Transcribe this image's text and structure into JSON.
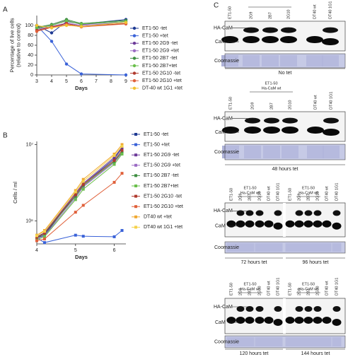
{
  "chart_data": [
    {
      "type": "line",
      "panel_label": "A",
      "ylabel": [
        "Percentage of live cells",
        "(relative to control)"
      ],
      "xlabel": "Days",
      "x": [
        3,
        4,
        5,
        6,
        9
      ],
      "xlim": [
        3,
        9
      ],
      "xticks": [
        3,
        4,
        5,
        6,
        7,
        8,
        9
      ],
      "ylim": [
        0,
        120
      ],
      "yticks": [
        0,
        20,
        40,
        60,
        80,
        100
      ],
      "marker": "circle",
      "series": [
        {
          "name": "ET1-50 -tet",
          "color": "#1f3a93",
          "values": [
            100,
            85,
            108,
            103,
            112
          ]
        },
        {
          "name": "ET1-50 +tet",
          "color": "#3a62d8",
          "values": [
            100,
            68,
            22,
            2,
            0
          ]
        },
        {
          "name": "ET1-50 2G9 -tet",
          "color": "#6c3a99",
          "values": [
            95,
            100,
            110,
            102,
            108
          ]
        },
        {
          "name": "ET1-50 2G9 +tet",
          "color": "#9b6bc4",
          "values": [
            92,
            98,
            105,
            100,
            106
          ]
        },
        {
          "name": "ET1-50 2B7 -tet",
          "color": "#3e8e41",
          "values": [
            96,
            102,
            112,
            104,
            110
          ]
        },
        {
          "name": "ET1-50 2B7+tet",
          "color": "#6abf4b",
          "values": [
            94,
            100,
            109,
            103,
            108
          ]
        },
        {
          "name": "ET1-50 2G10 -tet",
          "color": "#b03a2e",
          "values": [
            90,
            97,
            104,
            98,
            104
          ]
        },
        {
          "name": "ET1-50 2G10 +tet",
          "color": "#e0603a",
          "values": [
            88,
            96,
            102,
            97,
            103
          ]
        },
        {
          "name": "DT-40 wt 1G1 +tet",
          "color": "#f2c230",
          "values": [
            100,
            95,
            100,
            98,
            106
          ]
        }
      ]
    },
    {
      "type": "line",
      "panel_label": "B",
      "ylabel": [
        "Cells / ml"
      ],
      "xlabel": "Days",
      "log_y": true,
      "x": [
        4,
        4.2,
        5,
        5.2,
        6,
        6.2
      ],
      "xlim": [
        4,
        6.3
      ],
      "xticks": [
        4,
        5,
        6
      ],
      "ylim": [
        500000,
        11000000
      ],
      "yticks": [
        {
          "value": 1000000,
          "label": "10⁶"
        },
        {
          "value": 10000000,
          "label": "10⁷"
        }
      ],
      "marker": "square",
      "series": [
        {
          "name": "ET1-50 -tet",
          "color": "#1f3a93",
          "values": [
            600000,
            650000,
            2200000,
            3000000,
            6500000,
            9000000
          ]
        },
        {
          "name": "ET1-50 +tet",
          "color": "#3a62d8",
          "values": [
            600000,
            520000,
            650000,
            630000,
            620000,
            750000
          ]
        },
        {
          "name": "ET1-50 2G9 -tet",
          "color": "#6c3a99",
          "values": [
            620000,
            700000,
            2300000,
            3100000,
            6800000,
            9200000
          ]
        },
        {
          "name": "ET1-50 2G9 +tet",
          "color": "#9b6bc4",
          "values": [
            580000,
            640000,
            2000000,
            2800000,
            5800000,
            7800000
          ]
        },
        {
          "name": "ET1-50 2B7 -tet",
          "color": "#3e8e41",
          "values": [
            600000,
            680000,
            2100000,
            2900000,
            6000000,
            8000000
          ]
        },
        {
          "name": "ET1-50 2B7+tet",
          "color": "#6abf4b",
          "values": [
            570000,
            620000,
            1900000,
            2600000,
            5500000,
            7500000
          ]
        },
        {
          "name": "ET1-50 2G10 -tet",
          "color": "#b03a2e",
          "values": [
            610000,
            690000,
            2200000,
            3000000,
            6200000,
            8400000
          ]
        },
        {
          "name": "ET1-50 2G10 +tet",
          "color": "#e0603a",
          "values": [
            550000,
            580000,
            1300000,
            1600000,
            3200000,
            4200000
          ]
        },
        {
          "name": "DT40 wt +tet",
          "color": "#f0a830",
          "values": [
            650000,
            750000,
            2500000,
            3500000,
            7500000,
            10000000
          ]
        },
        {
          "name": "DT40 wt 1G1 +tet",
          "color": "#f5d24a",
          "values": [
            640000,
            730000,
            2400000,
            3300000,
            7200000,
            9500000
          ]
        }
      ]
    }
  ],
  "panel_c": {
    "label": "C",
    "blots": [
      {
        "lanes": [
          "ET1-50",
          "2G9",
          "2B7",
          "2G10",
          "DT40 wt",
          "DT40 1G1"
        ],
        "bands": [
          "HA-CaM",
          "CaM"
        ],
        "stain": "Coomassie",
        "captions": [
          "No tet"
        ]
      },
      {
        "lanes": [
          "ET1-50",
          "2G9",
          "2B7",
          "2G10",
          "DT40 wt",
          "DT40 1G1"
        ],
        "groups": [
          [
            "ET1-50",
            "Ha-CaM wt"
          ]
        ],
        "bands": [
          "HA-CaM",
          "CaM"
        ],
        "stain": "Coomassie",
        "captions": [
          "48 hours tet"
        ]
      },
      {
        "lanes": [
          "ET1-50",
          "2G9",
          "2B7",
          "2G10",
          "DT40 wt",
          "DT40 1G1",
          "ET1-50",
          "2G9",
          "2B7",
          "2G10",
          "DT40 wt",
          "DT40 1G1"
        ],
        "groups": [
          [
            "ET1-50",
            "Ha-CaM wt"
          ],
          [
            "ET1-50",
            "Ha-CaM wt"
          ]
        ],
        "bands": [
          "HA-CaM",
          "CaM"
        ],
        "stain": "Coomassie",
        "captions": [
          "72 hours tet",
          "96 hours tet"
        ]
      },
      {
        "lanes": [
          "ET1-50",
          "2G9",
          "2B7",
          "2G10",
          "DT40 wt",
          "DT40 1G1",
          "ET1-50",
          "2G9",
          "2B7",
          "2G10",
          "DT40 wt",
          "DT40 1G1"
        ],
        "groups": [
          [
            "ET1-50",
            "Ha-CaM wt"
          ],
          [
            "ET1-50",
            "Ha-CaM wt"
          ]
        ],
        "bands": [
          "HA-CaM",
          "CaM"
        ],
        "stain": "Coomassie",
        "captions": [
          "120 hours tet",
          "144 hours tet"
        ]
      }
    ]
  }
}
